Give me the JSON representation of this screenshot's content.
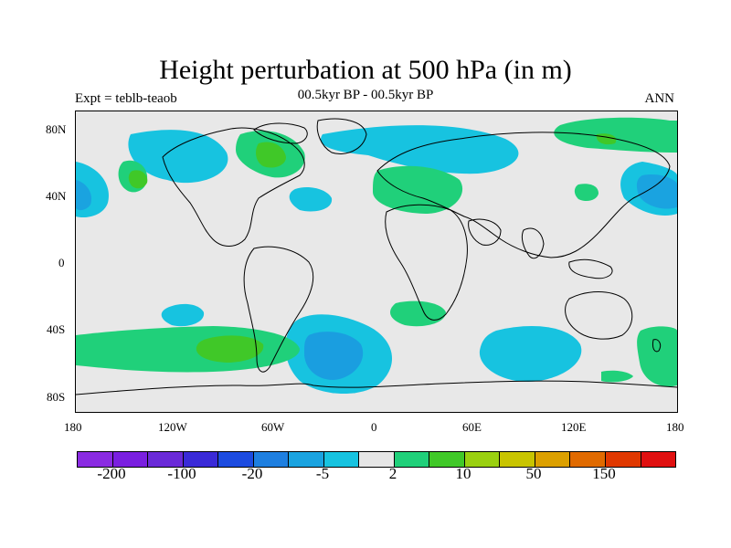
{
  "title": "Height perturbation at 500 hPa (in m)",
  "subtitle": "00.5kyr BP - 00.5kyr BP",
  "left_label": "Expt = teblb-teaob",
  "right_label": "ANN",
  "lat_labels": [
    "80N",
    "40N",
    "0",
    "40S",
    "80S"
  ],
  "lon_labels": [
    "180",
    "120W",
    "60W",
    "0",
    "60E",
    "120E",
    "180"
  ],
  "colorbar": {
    "colors": [
      "#8a2be2",
      "#7a1fe0",
      "#6a2ad8",
      "#3a2ad8",
      "#1c4be0",
      "#1e7fe0",
      "#1aa3e0",
      "#17c3e0",
      "#e6e6e6",
      "#20d07a",
      "#40c828",
      "#9ad010",
      "#c8c400",
      "#dca000",
      "#e06a00",
      "#e03800",
      "#e01010"
    ],
    "tick_labels": [
      "-200",
      "-100",
      "-20",
      "-5",
      "2",
      "10",
      "50",
      "150"
    ]
  }
}
